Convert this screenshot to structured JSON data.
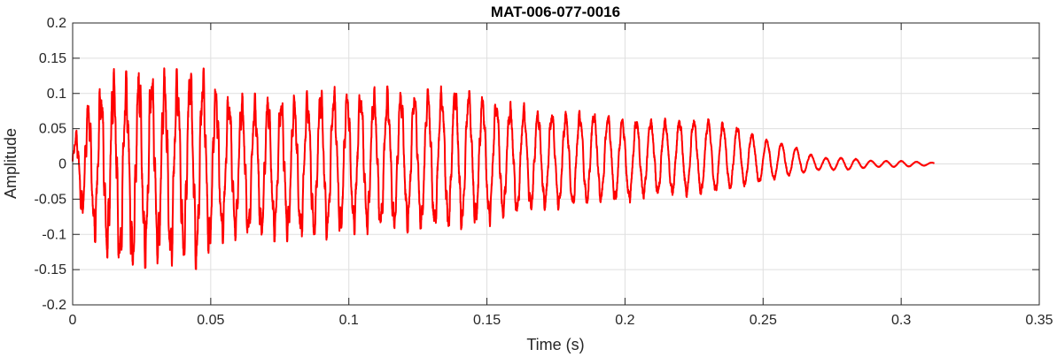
{
  "chart_data": {
    "type": "line",
    "title": "MAT-006-077-0016",
    "xlabel": "Time (s)",
    "ylabel": "Amplitude",
    "xlim": [
      0,
      0.35
    ],
    "ylim": [
      -0.2,
      0.2
    ],
    "grid": true,
    "xticks": [
      0,
      0.05,
      0.1,
      0.15,
      0.2,
      0.25,
      0.3,
      0.35
    ],
    "xtick_labels": [
      "0",
      "0.05",
      "0.1",
      "0.15",
      "0.2",
      "0.25",
      "0.3",
      "0.35"
    ],
    "yticks": [
      -0.2,
      -0.15,
      -0.1,
      -0.05,
      0,
      0.05,
      0.1,
      0.15,
      0.2
    ],
    "ytick_labels": [
      "-0.2",
      "-0.15",
      "-0.1",
      "-0.05",
      "0",
      "0.05",
      "0.1",
      "0.15",
      "0.2"
    ],
    "line_color": "#ff0000",
    "series": [
      {
        "x": [
          0,
          0.004,
          0.008,
          0.012,
          0.016,
          0.02,
          0.025,
          0.03,
          0.035,
          0.04,
          0.045,
          0.05,
          0.055,
          0.06,
          0.07,
          0.08,
          0.09,
          0.1,
          0.11,
          0.12,
          0.13,
          0.14,
          0.15,
          0.16,
          0.17,
          0.18,
          0.19,
          0.2,
          0.21,
          0.22,
          0.23,
          0.24,
          0.25,
          0.26,
          0.27,
          0.28,
          0.29,
          0.3,
          0.312
        ],
        "y_upper": [
          0.03,
          0.08,
          0.1,
          0.12,
          0.14,
          0.13,
          0.14,
          0.13,
          0.14,
          0.13,
          0.15,
          0.12,
          0.1,
          0.1,
          0.1,
          0.1,
          0.11,
          0.11,
          0.11,
          0.11,
          0.11,
          0.12,
          0.1,
          0.09,
          0.08,
          0.08,
          0.08,
          0.07,
          0.07,
          0.07,
          0.07,
          0.06,
          0.04,
          0.03,
          0.01,
          0.01,
          0.005,
          0.005,
          0.002
        ],
        "y_lower": [
          -0.03,
          -0.08,
          -0.11,
          -0.13,
          -0.15,
          -0.16,
          -0.15,
          -0.14,
          -0.15,
          -0.14,
          -0.15,
          -0.13,
          -0.11,
          -0.11,
          -0.11,
          -0.11,
          -0.11,
          -0.1,
          -0.1,
          -0.1,
          -0.1,
          -0.1,
          -0.09,
          -0.08,
          -0.07,
          -0.07,
          -0.06,
          -0.06,
          -0.05,
          -0.05,
          -0.05,
          -0.04,
          -0.03,
          -0.02,
          -0.01,
          -0.01,
          -0.005,
          -0.005,
          -0.002
        ]
      }
    ]
  }
}
